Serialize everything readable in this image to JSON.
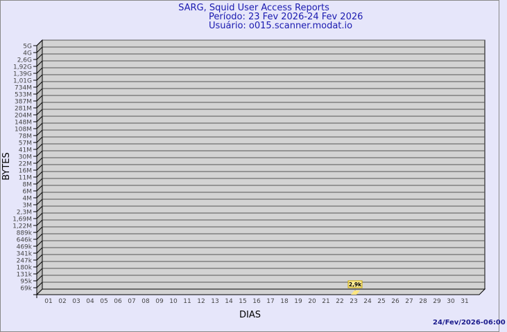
{
  "chart_data": {
    "type": "bar",
    "title": "SARG, Squid User Access Reports",
    "subtitle": [
      "Período: 23 Fev 2026-24 Fev 2026",
      "Usuário: o015.scanner.modat.io"
    ],
    "xlabel": "DIAS",
    "ylabel": "BYTES",
    "y_scale": "log",
    "categories": [
      "01",
      "02",
      "03",
      "04",
      "05",
      "06",
      "07",
      "08",
      "09",
      "10",
      "11",
      "12",
      "13",
      "14",
      "15",
      "16",
      "17",
      "18",
      "19",
      "20",
      "21",
      "22",
      "23",
      "24",
      "25",
      "26",
      "27",
      "28",
      "29",
      "30",
      "31"
    ],
    "y_tick_labels": [
      "5G",
      "4G",
      "2,6G",
      "1,92G",
      "1,39G",
      "1,01G",
      "734M",
      "533M",
      "387M",
      "281M",
      "204M",
      "148M",
      "108M",
      "78M",
      "57M",
      "41M",
      "30M",
      "22M",
      "16M",
      "11M",
      "8M",
      "6M",
      "4M",
      "3M",
      "2,3M",
      "1,69M",
      "1,22M",
      "889k",
      "646k",
      "469k",
      "341k",
      "247k",
      "180k",
      "131k",
      "95k",
      "69k"
    ],
    "series": [
      {
        "values": [
          {
            "x": "23",
            "y": 2900,
            "label": "2,9k"
          }
        ]
      }
    ],
    "bar_color": "#ffe680",
    "grid": true,
    "footer": "24/Fev/2026-06:00"
  }
}
